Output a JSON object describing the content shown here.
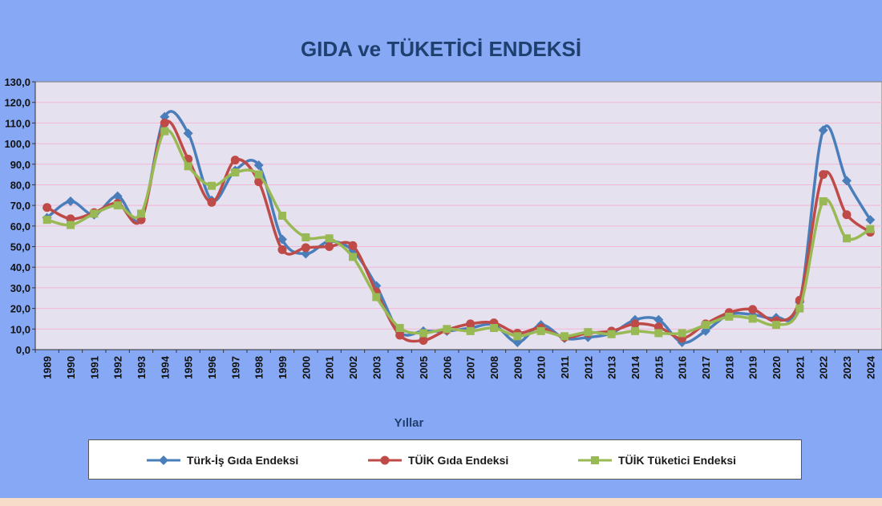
{
  "chart_data": {
    "type": "line",
    "title": "GIDA ve TÜKETİCİ ENDEKSİ",
    "xlabel": "Yıllar",
    "ylabel": "",
    "ylim": [
      0,
      130
    ],
    "y_ticks": [
      "0,0",
      "10,0",
      "20,0",
      "30,0",
      "40,0",
      "50,0",
      "60,0",
      "70,0",
      "80,0",
      "90,0",
      "100,0",
      "110,0",
      "120,0",
      "130,0"
    ],
    "categories": [
      "1989",
      "1990",
      "1991",
      "1992",
      "1993",
      "1994",
      "1995",
      "1996",
      "1997",
      "1998",
      "1999",
      "2000",
      "2001",
      "2002",
      "2003",
      "2004",
      "2005",
      "2006",
      "2007",
      "2008",
      "2009",
      "2010",
      "2011",
      "2012",
      "2013",
      "2014",
      "2015",
      "2016",
      "2017",
      "2018",
      "2019",
      "2020",
      "2021",
      "2022",
      "2023",
      "2024"
    ],
    "grid": true,
    "legend_position": "bottom",
    "series": [
      {
        "name": "Türk-İş Gıda Endeksi",
        "color": "#4a7ebb",
        "marker": "diamond",
        "values": [
          64.0,
          72.0,
          65.5,
          74.5,
          63.5,
          113.0,
          105.0,
          72.5,
          87.0,
          89.5,
          53.5,
          46.5,
          52.5,
          48.0,
          31.0,
          8.5,
          9.0,
          9.0,
          10.5,
          12.0,
          3.5,
          12.0,
          5.5,
          6.0,
          8.0,
          14.5,
          14.5,
          3.5,
          9.0,
          17.0,
          17.0,
          15.5,
          23.0,
          106.5,
          82.0,
          63.0
        ]
      },
      {
        "name": "TÜİK Gıda Endeksi",
        "color": "#be4b48",
        "marker": "circle",
        "values": [
          69.0,
          63.5,
          66.5,
          71.0,
          63.0,
          110.0,
          92.5,
          71.5,
          92.0,
          81.5,
          48.5,
          49.5,
          50.0,
          50.5,
          28.0,
          7.0,
          4.5,
          9.5,
          12.5,
          13.0,
          8.0,
          10.5,
          6.0,
          8.0,
          9.0,
          12.5,
          11.0,
          5.5,
          12.5,
          18.0,
          19.5,
          14.0,
          24.0,
          85.0,
          65.5,
          57.0
        ]
      },
      {
        "name": "TÜİK Tüketici Endeksi",
        "color": "#98b954",
        "marker": "square",
        "values": [
          63.0,
          60.5,
          66.0,
          70.0,
          66.0,
          106.0,
          89.0,
          79.5,
          86.0,
          85.0,
          65.0,
          54.5,
          54.0,
          45.0,
          25.5,
          10.5,
          8.0,
          10.0,
          9.0,
          10.5,
          6.5,
          9.0,
          6.5,
          8.5,
          7.5,
          9.0,
          8.0,
          8.0,
          12.0,
          16.0,
          15.0,
          12.0,
          20.0,
          72.0,
          54.0,
          58.5
        ]
      }
    ]
  }
}
